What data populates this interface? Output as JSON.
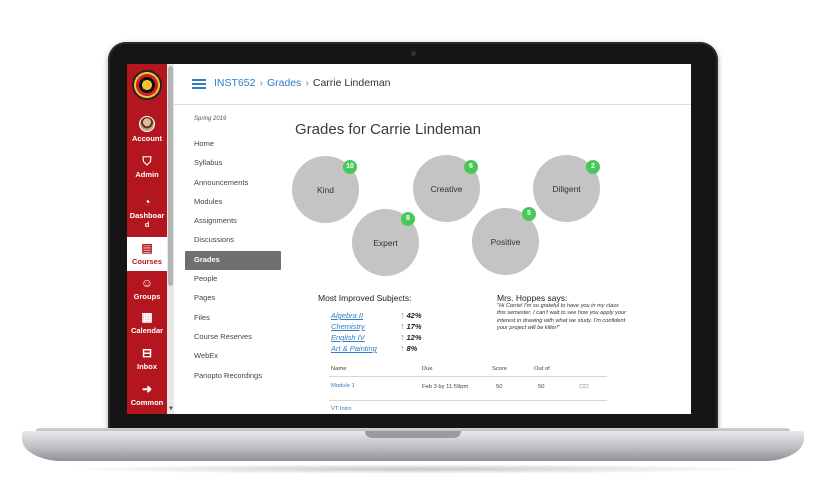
{
  "nav": {
    "items": [
      {
        "label": "Account",
        "icon": "user-avatar-icon"
      },
      {
        "label": "Admin",
        "icon": "shield-icon"
      },
      {
        "label": "Dashboard",
        "icon": "speedometer-icon"
      },
      {
        "label": "Courses",
        "icon": "book-icon"
      },
      {
        "label": "Groups",
        "icon": "people-icon"
      },
      {
        "label": "Calendar",
        "icon": "calendar-icon"
      },
      {
        "label": "Inbox",
        "icon": "inbox-icon"
      },
      {
        "label": "Common",
        "icon": "share-icon"
      }
    ],
    "accent": "#b3161e"
  },
  "breadcrumb": {
    "course": "INST652",
    "section": "Grades",
    "current": "Carrie Lindeman"
  },
  "course_nav": {
    "term": "Spring 2019",
    "items": [
      "Home",
      "Syllabus",
      "Announcements",
      "Modules",
      "Assignments",
      "Discussions",
      "Grades",
      "People",
      "Pages",
      "Files",
      "Course Reserves",
      "WebEx",
      "Panopto Recordings"
    ],
    "active": "Grades"
  },
  "page_title": "Grades for Carrie Lindeman",
  "traits": [
    {
      "label": "Kind",
      "count": "10"
    },
    {
      "label": "Creative",
      "count": "6"
    },
    {
      "label": "Diligent",
      "count": "2"
    },
    {
      "label": "Expert",
      "count": "8"
    },
    {
      "label": "Positive",
      "count": "5"
    }
  ],
  "improved": {
    "heading": "Most Improved Subjects:",
    "subjects": [
      {
        "name": "Algebra II",
        "change": "42%"
      },
      {
        "name": "Chemistry",
        "change": "17%"
      },
      {
        "name": "English IV",
        "change": "12%"
      },
      {
        "name": "Art & Painting",
        "change": "8%"
      }
    ]
  },
  "teacher": {
    "heading": "Mrs. Hoppes says:",
    "quote": "\"Hi Carrie! I'm so grateful to have you in my class this semester. I can't wait to see how you apply your interest in drawing with what we study. I'm confident your project will be killer!\""
  },
  "table": {
    "headers": {
      "name": "Name",
      "due": "Due",
      "score": "Score",
      "out_of": "Out of"
    },
    "rows": [
      {
        "name": "Module 1",
        "due": "Feb 3 by 11:59pm",
        "score": "50",
        "out_of": "50"
      },
      {
        "name": "VT Intro",
        "due": "",
        "score": "",
        "out_of": ""
      }
    ]
  },
  "colors": {
    "badge": "#49c85a",
    "bubble": "#c4c4c4",
    "link": "#2d7ec4"
  }
}
